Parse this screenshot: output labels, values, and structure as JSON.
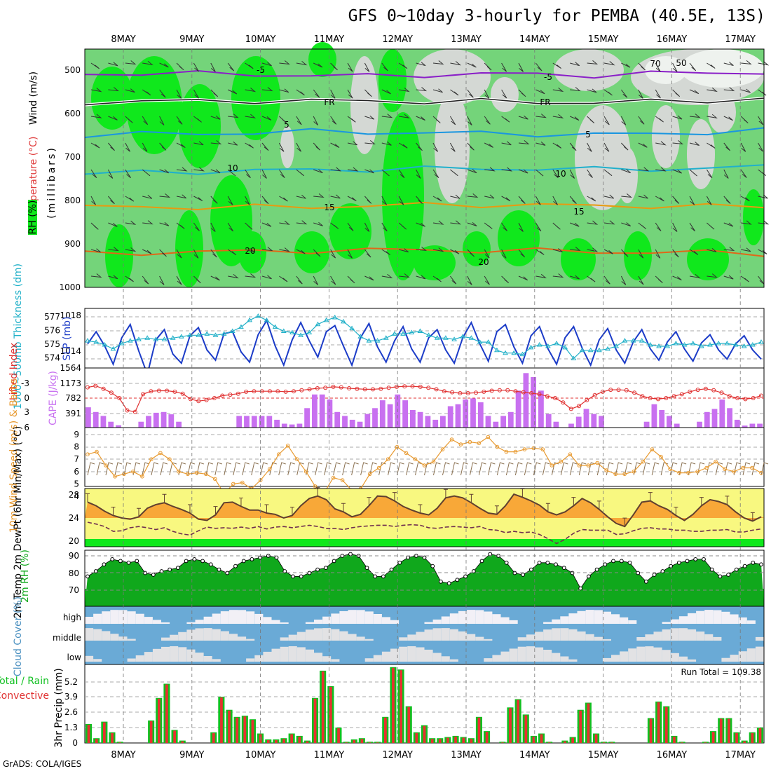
{
  "chart_data": {
    "type": "meteogram",
    "title": "GFS 0~10day 3-hourly for PEMBA (40.5E, 13S)",
    "x_days": [
      "8MAY",
      "9MAY",
      "10MAY",
      "11MAY",
      "12MAY",
      "13MAY",
      "14MAY",
      "15MAY",
      "16MAY",
      "17MAY"
    ],
    "footer": "GrADS: COLA/IGES",
    "panel_upper": {
      "ylabel_wind": "Wind (m/s)",
      "ylabel_temp": "Temperature (°C)",
      "ylabel_rh": "RH (%)",
      "ylabel_pres": "(millibars)",
      "y_ticks": [
        "500",
        "600",
        "700",
        "800",
        "900",
        "1000"
      ],
      "contour_labels": [
        "-5",
        "-5",
        "FR",
        "FR",
        "5",
        "5",
        "10",
        "10",
        "15",
        "15",
        "20",
        "20",
        "70",
        "50"
      ],
      "isotherms": [
        {
          "name": "-5",
          "color": "#8a1fc8",
          "p": [
            510,
            507,
            508,
            510,
            512,
            514,
            511,
            509,
            510,
            512,
            508,
            506,
            505
          ]
        },
        {
          "name": "FR",
          "color": "#222222",
          "p": [
            575,
            572,
            572,
            571,
            572,
            571,
            573,
            572,
            574,
            575,
            573,
            570,
            567
          ]
        },
        {
          "name": "5",
          "color": "#1a96e0",
          "p": [
            650,
            648,
            647,
            645,
            642,
            643,
            646,
            646,
            648,
            650,
            647,
            644,
            640
          ]
        },
        {
          "name": "10",
          "color": "#20b0cc",
          "p": [
            740,
            737,
            735,
            733,
            731,
            730,
            728,
            728,
            728,
            730,
            729,
            727,
            724
          ]
        },
        {
          "name": "15",
          "color": "#e89a10",
          "p": [
            818,
            816,
            818,
            817,
            816,
            814,
            812,
            812,
            812,
            815,
            814,
            815,
            817
          ]
        },
        {
          "name": "20",
          "color": "#e06818",
          "p": [
            925,
            923,
            920,
            920,
            918,
            917,
            916,
            918,
            918,
            920,
            922,
            922,
            925
          ]
        }
      ]
    },
    "panel_slp": {
      "ylabel_thick": "1000~500mb Thickness (dm)",
      "ylabel_slp": "SLP (mb)",
      "thick_ticks": [
        "577",
        "576",
        "575",
        "574"
      ],
      "slp_ticks": [
        "1018",
        "1014",
        "1564"
      ],
      "slp": [
        1015.2,
        1016.4,
        1015.0,
        1013.2,
        1015.8,
        1017.1,
        1014.5,
        1012.2,
        1015.6,
        1016.6,
        1014.2,
        1013.3,
        1016.0,
        1016.8,
        1014.6,
        1013.6,
        1016.2,
        1016.4,
        1014.4,
        1013.4,
        1016.1,
        1017.5,
        1015.0,
        1013.1,
        1015.6,
        1017.3,
        1015.5,
        1013.9,
        1016.4,
        1017.0,
        1015.0,
        1013.1,
        1015.8,
        1017.2,
        1014.9,
        1013.4,
        1015.5,
        1016.9,
        1014.7,
        1013.4,
        1015.8,
        1016.6,
        1014.6,
        1013.3,
        1015.8,
        1017.3,
        1015.2,
        1013.5,
        1016.4,
        1017.1,
        1014.9,
        1013.3,
        1016.0,
        1016.9,
        1014.7,
        1013.2,
        1015.8,
        1016.9,
        1014.8,
        1013.1,
        1015.6,
        1016.7,
        1014.6,
        1013.3,
        1015.4,
        1016.6,
        1014.7,
        1013.6,
        1015.4,
        1016.4,
        1014.7,
        1013.5,
        1015.3,
        1016.1,
        1014.6,
        1013.7,
        1015.2,
        1016.0,
        1014.6,
        1013.7
      ],
      "thickness": [
        575.3,
        575.2,
        575.0,
        574.7,
        575.1,
        575.3,
        575.4,
        575.5,
        575.4,
        575.4,
        575.5,
        575.6,
        575.7,
        575.7,
        575.8,
        575.7,
        575.8,
        576.0,
        576.3,
        576.8,
        577.1,
        576.8,
        576.3,
        576.0,
        575.9,
        575.7,
        575.9,
        576.5,
        576.8,
        577.0,
        576.7,
        576.2,
        575.6,
        575.3,
        575.3,
        575.5,
        575.8,
        575.8,
        575.9,
        576.0,
        575.7,
        575.5,
        575.5,
        575.4,
        575.6,
        575.5,
        575.2,
        575.2,
        574.6,
        574.4,
        574.4,
        574.3,
        574.8,
        575.0,
        574.9,
        575.1,
        574.8,
        574.0,
        574.6,
        574.6,
        574.6,
        574.7,
        574.9,
        575.3,
        575.3,
        575.3,
        575.0,
        574.9,
        574.9,
        575.1,
        575.0,
        575.1,
        574.9,
        575.0,
        575.1,
        575.1,
        575.0,
        574.9,
        575.0,
        575.2
      ]
    },
    "panel_cape": {
      "ylabel_li": "Lifted Index",
      "ylabel_cape": "CAPE (J/kg)",
      "li_ticks": [
        "-3",
        "0",
        "3",
        "6"
      ],
      "cape_ticks": [
        "1173",
        "782",
        "391"
      ],
      "cape": [
        520,
        400,
        300,
        150,
        60,
        0,
        0,
        150,
        300,
        380,
        400,
        340,
        150,
        0,
        0,
        0,
        0,
        0,
        0,
        0,
        300,
        300,
        300,
        300,
        300,
        200,
        100,
        80,
        100,
        500,
        850,
        850,
        720,
        400,
        300,
        200,
        150,
        350,
        500,
        700,
        600,
        850,
        700,
        450,
        400,
        300,
        200,
        300,
        550,
        600,
        720,
        750,
        650,
        300,
        150,
        300,
        400,
        950,
        1400,
        1300,
        950,
        350,
        150,
        0,
        100,
        280,
        480,
        350,
        300,
        0,
        0,
        0,
        0,
        0,
        150,
        600,
        450,
        300,
        100,
        0,
        0,
        150,
        400,
        480,
        720,
        500,
        200,
        50,
        100,
        100
      ],
      "li": [
        -2.2,
        -2.5,
        -1.9,
        -1.1,
        0,
        2.5,
        2.8,
        -0.8,
        -1.4,
        -1.5,
        -1.5,
        -1.3,
        -0.9,
        0.2,
        0.6,
        0.4,
        0,
        -0.5,
        -0.7,
        -0.9,
        -1.3,
        -1.4,
        -1.4,
        -1.4,
        -1.4,
        -1.3,
        -1.4,
        -1.6,
        -1.8,
        -2.0,
        -2.1,
        -2.3,
        -2.2,
        -2.0,
        -1.9,
        -1.8,
        -1.8,
        -1.9,
        -2.1,
        -2.3,
        -2.4,
        -2.4,
        -2.3,
        -2.1,
        -1.8,
        -1.4,
        -1.2,
        -1.0,
        -1.0,
        -1.1,
        -1.3,
        -1.5,
        -1.6,
        -1.6,
        -1.4,
        -1.2,
        -1.0,
        -0.8,
        -0.4,
        0,
        0.9,
        2.2,
        1.6,
        0.4,
        -0.6,
        -1.3,
        -1.7,
        -1.7,
        -1.6,
        -1.1,
        -0.4,
        0,
        0.2,
        0.0,
        -0.4,
        -0.8,
        -1.3,
        -1.7,
        -1.9,
        -1.6,
        -1.1,
        -0.4,
        0,
        0.2,
        0.0,
        -0.5
      ]
    },
    "panel_wind10": {
      "ylabel": "10m Wind Speed (m/s) & Barbs",
      "y_ticks": [
        "9",
        "8",
        "7",
        "6",
        "5",
        "4"
      ],
      "speed": [
        7.4,
        7.6,
        6.5,
        5.6,
        5.8,
        6.0,
        5.6,
        7.0,
        7.5,
        7.0,
        6.0,
        5.8,
        5.9,
        5.8,
        5.4,
        4.2,
        5.0,
        5.1,
        4.6,
        5.3,
        6.2,
        7.4,
        8.1,
        7.0,
        6.0,
        4.8,
        4.3,
        5.5,
        5.3,
        4.5,
        4.6,
        5.8,
        6.3,
        7.0,
        8.0,
        7.5,
        7.0,
        6.5,
        6.8,
        7.8,
        8.6,
        8.2,
        8.4,
        8.3,
        8.8,
        8.0,
        7.6,
        7.6,
        7.8,
        7.9,
        7.8,
        6.5,
        6.8,
        7.4,
        6.5,
        6.5,
        6.7,
        6.1,
        5.8,
        5.8,
        6.0,
        6.8,
        7.8,
        7.2,
        6.2,
        5.9,
        5.9,
        6.0,
        6.3,
        6.8,
        6.2,
        6.0,
        6.3,
        6.3,
        5.9
      ]
    },
    "panel_t2m": {
      "ylabel": "2m Temp 2m DewPt (6hr Min/Max) (°C)",
      "y_ticks": [
        "28",
        "24",
        "20"
      ],
      "temp": [
        26.6,
        26.0,
        25.1,
        24.4,
        24.0,
        23.8,
        24.2,
        25.6,
        26.2,
        26.5,
        25.9,
        25.4,
        24.8,
        23.8,
        23.6,
        24.5,
        26.5,
        26.6,
        25.9,
        25.3,
        25.3,
        24.8,
        24.6,
        24.0,
        24.4,
        26.0,
        27.2,
        27.6,
        27.0,
        25.5,
        25.0,
        24.2,
        24.6,
        26.0,
        27.6,
        27.5,
        26.8,
        25.9,
        25.3,
        24.8,
        24.5,
        25.6,
        27.3,
        27.6,
        27.3,
        26.5,
        25.6,
        24.8,
        24.6,
        26.0,
        27.9,
        27.4,
        26.8,
        26.1,
        25.0,
        24.5,
        25.0,
        26.0,
        27.2,
        26.5,
        25.4,
        24.2,
        23.1,
        22.6,
        24.5,
        26.6,
        26.8,
        26.0,
        25.4,
        24.4,
        23.6,
        24.6,
        26.0,
        27.0,
        26.7,
        26.2,
        25.0,
        24.0,
        23.5,
        24.2
      ],
      "dewpt": [
        23.3,
        23.0,
        22.6,
        21.8,
        21.9,
        22.4,
        22.6,
        22.4,
        22.1,
        22.4,
        21.8,
        21.4,
        21.2,
        21.9,
        22.5,
        22.3,
        22.4,
        22.3,
        22.5,
        22.3,
        22.6,
        22.2,
        22.5,
        22.6,
        22.4,
        22.6,
        22.8,
        22.6,
        22.3,
        22.3,
        22.1,
        22.4,
        22.6,
        22.7,
        22.8,
        22.8,
        22.6,
        22.8,
        22.9,
        22.8,
        22.4,
        22.3,
        22.5,
        22.6,
        22.5,
        22.4,
        22.6,
        22.1,
        22.0,
        21.6,
        21.8,
        21.6,
        21.7,
        21.3,
        20.6,
        19.8,
        20.5,
        21.5,
        22.1,
        22.0,
        22.0,
        22.0,
        21.3,
        21.4,
        21.9,
        22.3,
        22.4,
        22.2,
        22.2,
        22.0,
        22.0,
        21.8,
        21.8,
        22.0,
        22.0,
        22.1,
        21.7,
        21.7,
        22.0,
        22.2
      ]
    },
    "panel_rh": {
      "ylabel": "2m RH (%)",
      "y_ticks": [
        "90",
        "80",
        "70"
      ],
      "rh": [
        78,
        81,
        85,
        88,
        87,
        86,
        87,
        80,
        79,
        81,
        82,
        83,
        87,
        88,
        87,
        85,
        82,
        80,
        84,
        87,
        88,
        89,
        90,
        89,
        81,
        78,
        78,
        80,
        82,
        83,
        87,
        90,
        91,
        90,
        83,
        78,
        78,
        82,
        86,
        89,
        90,
        89,
        84,
        75,
        74,
        76,
        78,
        81,
        87,
        91,
        90,
        86,
        80,
        79,
        82,
        86,
        86,
        85,
        83,
        80,
        71,
        78,
        82,
        85,
        87,
        87,
        86,
        80,
        75,
        79,
        81,
        84,
        86,
        87,
        88,
        88,
        82,
        78,
        79,
        82,
        84,
        86,
        85
      ]
    },
    "panel_cloud": {
      "ylabel": "Cloud Cover (%)",
      "levels": [
        "high",
        "middle",
        "low"
      ]
    },
    "panel_precip": {
      "ylabel": "3hr Precip (mm)",
      "legend_total": "Total / Rain",
      "legend_conv": "Convective",
      "run_total": "Run Total = 109.38",
      "y_ticks": [
        "5.2",
        "3.9",
        "2.6",
        "1.3",
        "0"
      ],
      "total": [
        1.6,
        0.4,
        1.8,
        0.9,
        0.1,
        0,
        0,
        0,
        1.9,
        3.8,
        5.0,
        1.1,
        0.2,
        0,
        0,
        0,
        0.9,
        3.9,
        2.8,
        2.2,
        2.3,
        2.0,
        0.8,
        0.3,
        0.3,
        0.4,
        0.8,
        0.6,
        0.2,
        3.8,
        6.1,
        4.8,
        1.3,
        0.1,
        0.3,
        0.4,
        0.1,
        0.1,
        2.2,
        6.4,
        6.2,
        3.1,
        0.9,
        1.5,
        0.4,
        0.4,
        0.5,
        0.6,
        0.5,
        0.4,
        2.2,
        1.0,
        0,
        0.1,
        3.0,
        3.7,
        2.4,
        0.6,
        0.8,
        0.1,
        0,
        0.2,
        0.5,
        2.8,
        3.4,
        0.8,
        0.1,
        0.1,
        0,
        0,
        0,
        0,
        2.1,
        3.5,
        3.1,
        0.6,
        0.1,
        0,
        0,
        0.1,
        1.0,
        2.1,
        2.1,
        0.9,
        0.2,
        0.9,
        1.3
      ]
    }
  }
}
